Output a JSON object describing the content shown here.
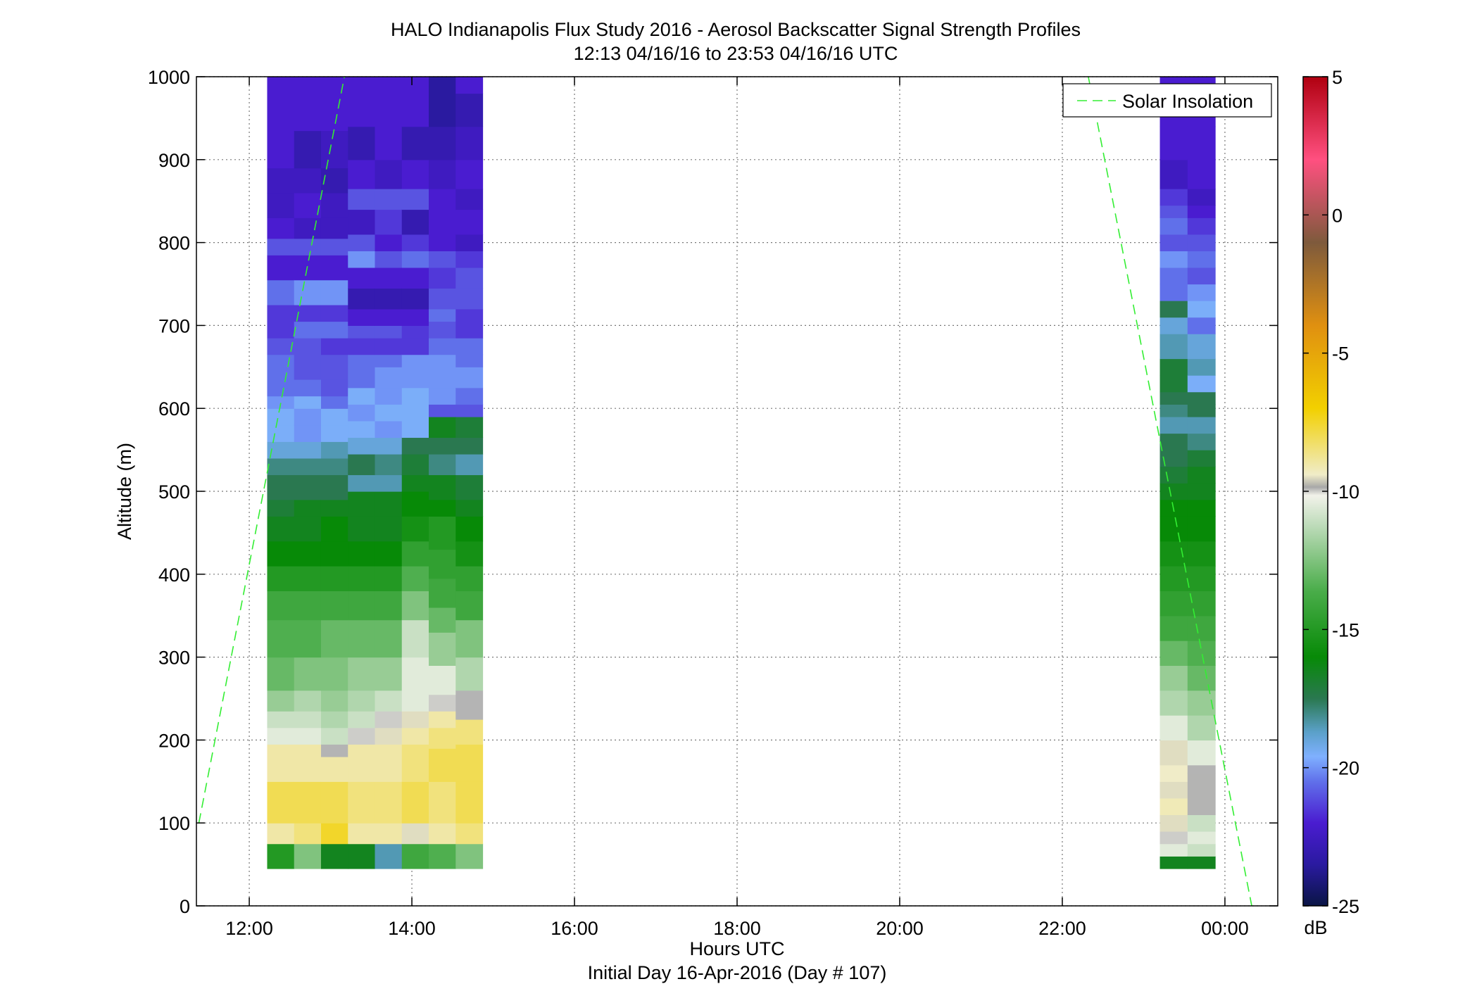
{
  "chart_data": {
    "type": "heatmap",
    "title": "HALO Indianapolis Flux Study 2016 - Aerosol Backscatter Signal Strength Profiles",
    "subtitle": "12:13 04/16/16 to 23:53 04/16/16  UTC",
    "xlabel": "Hours UTC",
    "xlabel_secondary": "Initial Day 16-Apr-2016 (Day # 107)",
    "ylabel": "Altitude (m)",
    "xlim_hours": [
      11.35,
      24.65
    ],
    "ylim": [
      0,
      1000
    ],
    "x_ticks": [
      12,
      14,
      16,
      18,
      20,
      22,
      24
    ],
    "x_tick_labels": [
      "12:00",
      "14:00",
      "16:00",
      "18:00",
      "20:00",
      "22:00",
      "00:00"
    ],
    "y_ticks": [
      0,
      100,
      200,
      300,
      400,
      500,
      600,
      700,
      800,
      900,
      1000
    ],
    "y_tick_labels": [
      "0",
      "100",
      "200",
      "300",
      "400",
      "500",
      "600",
      "700",
      "800",
      "900",
      "1000"
    ],
    "grid": true,
    "legend": {
      "position": "top-right",
      "entries": [
        "Solar Insolation"
      ]
    },
    "colorbar": {
      "label": "dB",
      "range": [
        -25,
        5
      ],
      "ticks": [
        5,
        0,
        -5,
        -10,
        -15,
        -20,
        -25
      ],
      "tick_labels": [
        "5",
        "0",
        "-5",
        "-10",
        "-15",
        "-20",
        "-25"
      ]
    },
    "blocks": [
      {
        "name": "morning",
        "start_hour": 12.22,
        "end_hour": 14.87,
        "columns": 8
      },
      {
        "name": "evening",
        "start_hour": 23.2,
        "end_hour": 23.88,
        "columns": 2
      }
    ],
    "altitude_bins": {
      "bottom": 45,
      "top": 1000,
      "count": 58
    },
    "solar_insolation": {
      "morning_line": [
        [
          11.38,
          100
        ],
        [
          13.17,
          1000
        ]
      ],
      "evening_line": [
        [
          22.32,
          1000
        ],
        [
          24.33,
          0
        ]
      ]
    },
    "profiles": [
      {
        "altitude_breaks": [
          45,
          75,
          100,
          150,
          195,
          215,
          235,
          260,
          300,
          345,
          380,
          410,
          440,
          470,
          490,
          520,
          540,
          560,
          580,
          600,
          615,
          635,
          665,
          685,
          705,
          725,
          755,
          785,
          805,
          830,
          860,
          890,
          935,
          1000
        ],
        "values": [
          -15,
          -9,
          -8,
          -9,
          -10.5,
          -11,
          -12,
          -13,
          -13.5,
          -14,
          -15,
          -16,
          -16.5,
          -17,
          -17.5,
          -18,
          -19,
          -19.5,
          -19.5,
          -20,
          -20.5,
          -20.5,
          -21,
          -21.5,
          -21.5,
          -20.5,
          -22,
          -21,
          -22,
          -22.5,
          -22.5,
          -22,
          -22
        ]
      },
      {
        "altitude_breaks": [
          45,
          75,
          100,
          150,
          195,
          215,
          235,
          260,
          300,
          345,
          380,
          410,
          440,
          470,
          490,
          520,
          540,
          560,
          580,
          600,
          615,
          635,
          665,
          685,
          705,
          725,
          755,
          785,
          805,
          830,
          860,
          890,
          935,
          1000
        ],
        "values": [
          -12.5,
          -8.5,
          -8,
          -9,
          -10.5,
          -11,
          -11.5,
          -12.5,
          -13.5,
          -14,
          -15,
          -16,
          -16.5,
          -16.5,
          -17.5,
          -18,
          -19,
          -20,
          -20,
          -19.5,
          -20.5,
          -21,
          -21,
          -20.5,
          -21.5,
          -20,
          -22,
          -21,
          -22.5,
          -22,
          -22.5,
          -23,
          -22
        ]
      },
      {
        "altitude_breaks": [
          45,
          75,
          100,
          150,
          180,
          195,
          215,
          235,
          260,
          300,
          345,
          380,
          410,
          440,
          470,
          490,
          520,
          540,
          560,
          580,
          600,
          615,
          635,
          665,
          685,
          705,
          725,
          755,
          785,
          805,
          830,
          860,
          890,
          935,
          1000
        ],
        "values": [
          -16.5,
          -7.5,
          -8,
          -9,
          -9.8,
          -11,
          -11.5,
          -12,
          -12.5,
          -13,
          -14,
          -15,
          -16,
          -16,
          -16.5,
          -17.5,
          -18,
          -18.5,
          -19.5,
          -19.5,
          -20.5,
          -21,
          -21,
          -21.5,
          -20.5,
          -21.5,
          -20,
          -22,
          -21,
          -22.5,
          -22.5,
          -23,
          -22.5,
          -22
        ]
      },
      {
        "altitude_breaks": [
          45,
          75,
          100,
          150,
          195,
          215,
          235,
          260,
          300,
          345,
          380,
          410,
          440,
          470,
          500,
          520,
          545,
          565,
          585,
          605,
          625,
          650,
          665,
          685,
          700,
          720,
          745,
          770,
          790,
          810,
          840,
          865,
          900,
          940,
          1000
        ],
        "values": [
          -16.5,
          -9,
          -8.5,
          -9,
          -10,
          -11,
          -11.5,
          -12,
          -13,
          -14,
          -15,
          -16,
          -16.5,
          -16.5,
          -18.5,
          -17.5,
          -19,
          -19.5,
          -20,
          -19.5,
          -20.5,
          -20.5,
          -21.5,
          -21,
          -22,
          -23,
          -22,
          -20,
          -21,
          -22.5,
          -21,
          -22,
          -23,
          -22
        ]
      },
      {
        "altitude_breaks": [
          45,
          75,
          100,
          150,
          195,
          215,
          235,
          260,
          300,
          345,
          380,
          410,
          440,
          470,
          500,
          520,
          545,
          565,
          585,
          605,
          625,
          650,
          665,
          685,
          700,
          720,
          745,
          770,
          790,
          810,
          840,
          865,
          900,
          940,
          1000
        ],
        "values": [
          -18.5,
          -9,
          -8.5,
          -9,
          -9.5,
          -10,
          -11,
          -12,
          -13,
          -14,
          -15,
          -16,
          -16.5,
          -16.5,
          -18.5,
          -18,
          -19,
          -20,
          -19.5,
          -20,
          -20,
          -20.5,
          -21.5,
          -21,
          -22,
          -23,
          -22,
          -21,
          -22,
          -21.5,
          -21,
          -22.5,
          -22,
          -22
        ]
      },
      {
        "altitude_breaks": [
          45,
          75,
          100,
          150,
          195,
          215,
          235,
          260,
          300,
          345,
          380,
          410,
          440,
          470,
          500,
          520,
          545,
          565,
          585,
          605,
          625,
          650,
          665,
          685,
          700,
          720,
          745,
          770,
          790,
          810,
          840,
          865,
          900,
          940,
          1000
        ],
        "values": [
          -14,
          -9.5,
          -8,
          -8.5,
          -9,
          -9.5,
          -10.5,
          -10.5,
          -11,
          -12.5,
          -13.5,
          -14.5,
          -15.5,
          -16,
          -16.5,
          -17,
          -17.5,
          -19.5,
          -19.5,
          -19.5,
          -20,
          -20,
          -21.5,
          -21.5,
          -22,
          -23,
          -22,
          -20.5,
          -21.5,
          -23,
          -21,
          -22,
          -23,
          -22
        ]
      },
      {
        "altitude_breaks": [
          45,
          75,
          100,
          150,
          190,
          215,
          235,
          255,
          290,
          330,
          360,
          395,
          430,
          470,
          490,
          520,
          545,
          565,
          590,
          605,
          625,
          650,
          665,
          685,
          705,
          720,
          745,
          770,
          790,
          810,
          840,
          865,
          900,
          940,
          980,
          1000
        ],
        "values": [
          -13.5,
          -9,
          -8.5,
          -8,
          -8.5,
          -9,
          -10,
          -10.5,
          -12,
          -13,
          -14,
          -14.5,
          -15,
          -16,
          -16.5,
          -18,
          -17.5,
          -16.5,
          -21,
          -20,
          -20,
          -20,
          -20.5,
          -21,
          -20.5,
          -21,
          -21.5,
          -21,
          -22,
          -22,
          -22,
          -22.5,
          -23,
          -23.5,
          -23.5
        ]
      },
      {
        "altitude_breaks": [
          45,
          75,
          100,
          150,
          195,
          225,
          260,
          300,
          345,
          380,
          410,
          440,
          470,
          490,
          520,
          545,
          565,
          590,
          605,
          625,
          650,
          665,
          685,
          705,
          720,
          745,
          770,
          790,
          810,
          840,
          865,
          900,
          940,
          980,
          1000
        ],
        "values": [
          -12.5,
          -8.5,
          -8,
          -8,
          -8.5,
          -9.8,
          -11.5,
          -12.5,
          -14,
          -14.5,
          -15.5,
          -16,
          -16.5,
          -17,
          -18.5,
          -17.5,
          -17,
          -21,
          -20.5,
          -20,
          -20.5,
          -20.5,
          -21.5,
          -21.5,
          -21,
          -21,
          -21.5,
          -22.5,
          -22,
          -22.5,
          -22,
          -22.5,
          -23,
          -22
        ]
      },
      {
        "altitude_breaks": [
          45,
          60,
          75,
          90,
          110,
          130,
          150,
          170,
          200,
          230,
          260,
          290,
          320,
          350,
          380,
          410,
          440,
          470,
          490,
          510,
          530,
          550,
          570,
          590,
          605,
          620,
          640,
          660,
          690,
          710,
          730,
          750,
          770,
          790,
          810,
          830,
          845,
          865,
          900,
          940,
          1000
        ],
        "values": [
          -16.5,
          -10.5,
          -10,
          -9.5,
          -9.2,
          -9.5,
          -9.4,
          -9.5,
          -10.5,
          -11.5,
          -12,
          -13,
          -14,
          -14.5,
          -15,
          -15.5,
          -16,
          -16,
          -16.5,
          -17,
          -17.5,
          -17.5,
          -18.5,
          -18,
          -17.5,
          -17,
          -17,
          -18.5,
          -19,
          -17.5,
          -20.5,
          -20.5,
          -20,
          -21,
          -20.5,
          -21,
          -21.5,
          -22.5,
          -22,
          -22
        ]
      },
      {
        "altitude_breaks": [
          45,
          60,
          75,
          90,
          110,
          160,
          170,
          200,
          230,
          260,
          290,
          320,
          350,
          380,
          410,
          440,
          470,
          490,
          510,
          530,
          550,
          570,
          590,
          605,
          620,
          640,
          660,
          690,
          710,
          730,
          750,
          770,
          790,
          810,
          830,
          845,
          865,
          900,
          940,
          1000
        ],
        "values": [
          -16.5,
          -11,
          -10.5,
          -11,
          -9.9,
          -9.8,
          -10.5,
          -11.5,
          -12,
          -13,
          -13.5,
          -14,
          -14.5,
          -15,
          -15.5,
          -16,
          -16,
          -16.5,
          -16.5,
          -17,
          -18,
          -18.5,
          -17.5,
          -17.5,
          -19.5,
          -18.5,
          -19,
          -20.5,
          -19.5,
          -20,
          -21,
          -20.5,
          -21,
          -21.5,
          -22,
          -22.5,
          -22,
          -22,
          -22
        ]
      }
    ]
  }
}
